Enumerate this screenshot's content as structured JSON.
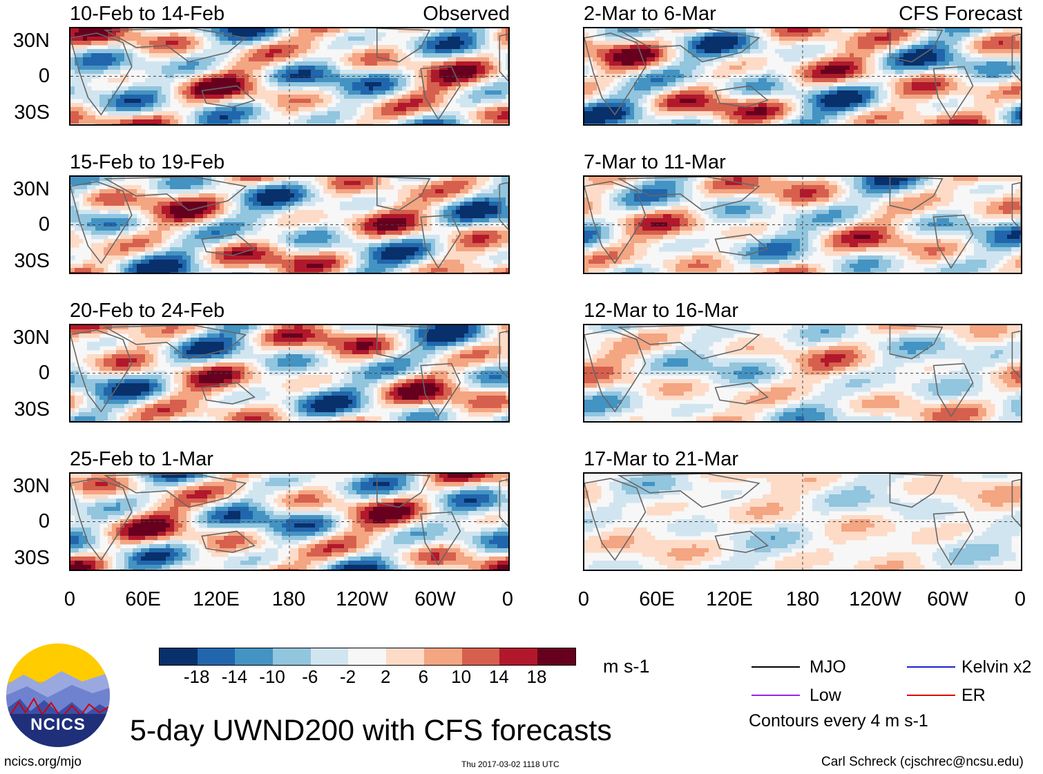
{
  "panels": {
    "observed": [
      {
        "title": "10-Feb to 14-Feb"
      },
      {
        "title": "15-Feb to 19-Feb"
      },
      {
        "title": "20-Feb to 24-Feb"
      },
      {
        "title": "25-Feb to 1-Mar"
      }
    ],
    "forecast": [
      {
        "title": "2-Mar to 6-Mar"
      },
      {
        "title": "7-Mar to 11-Mar"
      },
      {
        "title": "12-Mar to 16-Mar"
      },
      {
        "title": "17-Mar to 21-Mar"
      }
    ],
    "observed_tag": "Observed",
    "forecast_tag": "CFS Forecast"
  },
  "axes": {
    "lat_labels": [
      "30N",
      "0",
      "30S"
    ],
    "lon_labels": [
      "0",
      "60E",
      "120E",
      "180",
      "120W",
      "60W",
      "0"
    ]
  },
  "colorbar": {
    "colors": [
      "#08306b",
      "#2166ac",
      "#4393c3",
      "#92c5de",
      "#d1e5f0",
      "#f7f7f7",
      "#fddbc7",
      "#f4a582",
      "#d6604d",
      "#b2182b",
      "#67001f"
    ],
    "ticks": [
      "-18",
      "-14",
      "-10",
      "-6",
      "-2",
      "2",
      "6",
      "10",
      "14",
      "18"
    ],
    "units": "m s-1"
  },
  "legend": {
    "items": [
      {
        "label": "MJO",
        "color": "#000000"
      },
      {
        "label": "Kelvin x2",
        "color": "#1f1fcf"
      },
      {
        "label": "Low",
        "color": "#a020f0"
      },
      {
        "label": "ER",
        "color": "#e00000"
      }
    ],
    "note": "Contours every 4 m s-1"
  },
  "logo": {
    "text": "NCICS"
  },
  "footer": {
    "title": "5-day UWND200 with CFS forecasts",
    "url": "ncics.org/mjo",
    "timestamp": "Thu 2017-03-02 1118 UTC",
    "author": "Carl Schreck (cjschrec@ncsu.edu)"
  },
  "chart_data": {
    "type": "heatmap",
    "variable": "200-hPa zonal wind anomaly (UWND200), 5-day means",
    "units": "m s-1",
    "x_range": [
      "0",
      "360"
    ],
    "y_range": [
      "40S",
      "40N"
    ],
    "color_levels": [
      -18,
      -14,
      -10,
      -6,
      -2,
      2,
      6,
      10,
      14,
      18
    ]
  }
}
